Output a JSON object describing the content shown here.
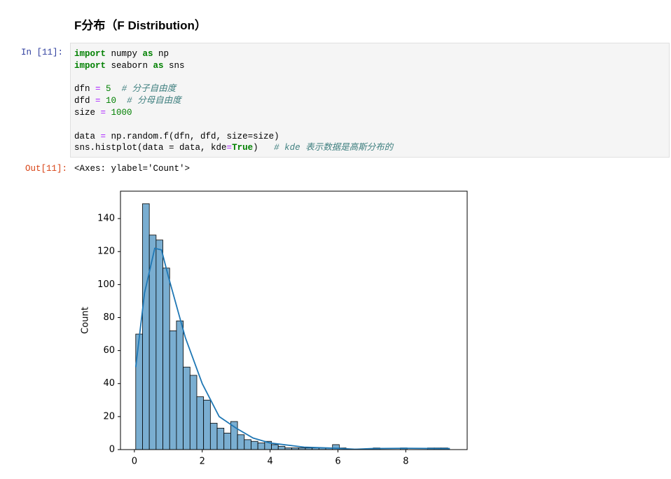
{
  "heading": "F分布（F Distribution）",
  "cell": {
    "prompt_in": "In [11]:",
    "code_lines": [
      [
        {
          "text": "import",
          "style": "kw"
        },
        {
          "text": " numpy "
        },
        {
          "text": "as",
          "style": "kw"
        },
        {
          "text": " np"
        }
      ],
      [
        {
          "text": "import",
          "style": "kw"
        },
        {
          "text": " seaborn "
        },
        {
          "text": "as",
          "style": "kw"
        },
        {
          "text": " sns"
        }
      ],
      [],
      [
        {
          "text": "dfn "
        },
        {
          "text": "=",
          "style": "op"
        },
        {
          "text": " "
        },
        {
          "text": "5",
          "style": "num"
        },
        {
          "text": "  "
        },
        {
          "text": "# 分子自由度",
          "style": "comment"
        }
      ],
      [
        {
          "text": "dfd "
        },
        {
          "text": "=",
          "style": "op"
        },
        {
          "text": " "
        },
        {
          "text": "10",
          "style": "num"
        },
        {
          "text": "  "
        },
        {
          "text": "# 分母自由度",
          "style": "comment"
        }
      ],
      [
        {
          "text": "size "
        },
        {
          "text": "=",
          "style": "op"
        },
        {
          "text": " "
        },
        {
          "text": "1000",
          "style": "num"
        }
      ],
      [],
      [
        {
          "text": "data "
        },
        {
          "text": "=",
          "style": "op"
        },
        {
          "text": " np.random.f(dfn, dfd, size=size)"
        }
      ],
      [
        {
          "text": "sns.histplot(data = data, kde"
        },
        {
          "text": "=",
          "style": "op"
        },
        {
          "text": "True",
          "style": "kw"
        },
        {
          "text": ")   "
        },
        {
          "text": "# kde 表示数据是高斯分布的",
          "style": "comment"
        }
      ]
    ],
    "prompt_out": "Out[11]:",
    "output": "<Axes: ylabel='Count'>"
  },
  "chart_data": {
    "type": "histogram",
    "ylabel": "Count",
    "bins": [
      0.04,
      0.24,
      0.44,
      0.64,
      0.84,
      1.04,
      1.24,
      1.44,
      1.64,
      1.84,
      2.04,
      2.24,
      2.44,
      2.64,
      2.84,
      3.04,
      3.24,
      3.44,
      3.64,
      3.84,
      4.04,
      4.24,
      4.44,
      4.64,
      4.84,
      5.04,
      5.24,
      5.44,
      5.64,
      5.84,
      6.04,
      6.24,
      6.44,
      6.64,
      6.84,
      7.04,
      7.24,
      7.44,
      7.64,
      7.84,
      8.04,
      8.24,
      8.44,
      8.64,
      8.84,
      9.04,
      9.24
    ],
    "values": [
      70,
      149,
      130,
      127,
      110,
      72,
      78,
      50,
      45,
      32,
      30,
      16,
      13,
      10,
      17,
      9,
      6,
      5,
      4,
      5,
      3,
      2,
      1,
      1,
      1,
      1,
      1,
      1,
      1,
      3,
      1,
      0,
      0,
      0,
      0,
      1,
      0,
      0,
      0,
      1,
      0,
      0,
      0,
      1,
      1,
      1
    ],
    "color": "#7aaed1",
    "kde": {
      "x": [
        0.04,
        0.3,
        0.6,
        0.8,
        1.0,
        1.5,
        2.0,
        2.5,
        3.0,
        3.5,
        4.0,
        5.0,
        6.0,
        6.5,
        7.0,
        8.0,
        9.3
      ],
      "values": [
        50,
        95,
        122,
        121,
        105,
        68,
        40,
        20,
        13,
        7,
        4,
        1.5,
        0.8,
        0.2,
        0.6,
        0.8,
        0.6
      ],
      "color": "#1f77b4"
    },
    "xlim": [
      -0.41,
      9.81
    ],
    "ylim": [
      0,
      156.6
    ],
    "xticks": [
      0,
      2,
      4,
      6,
      8
    ],
    "yticks": [
      0,
      20,
      40,
      60,
      80,
      100,
      120,
      140
    ]
  }
}
